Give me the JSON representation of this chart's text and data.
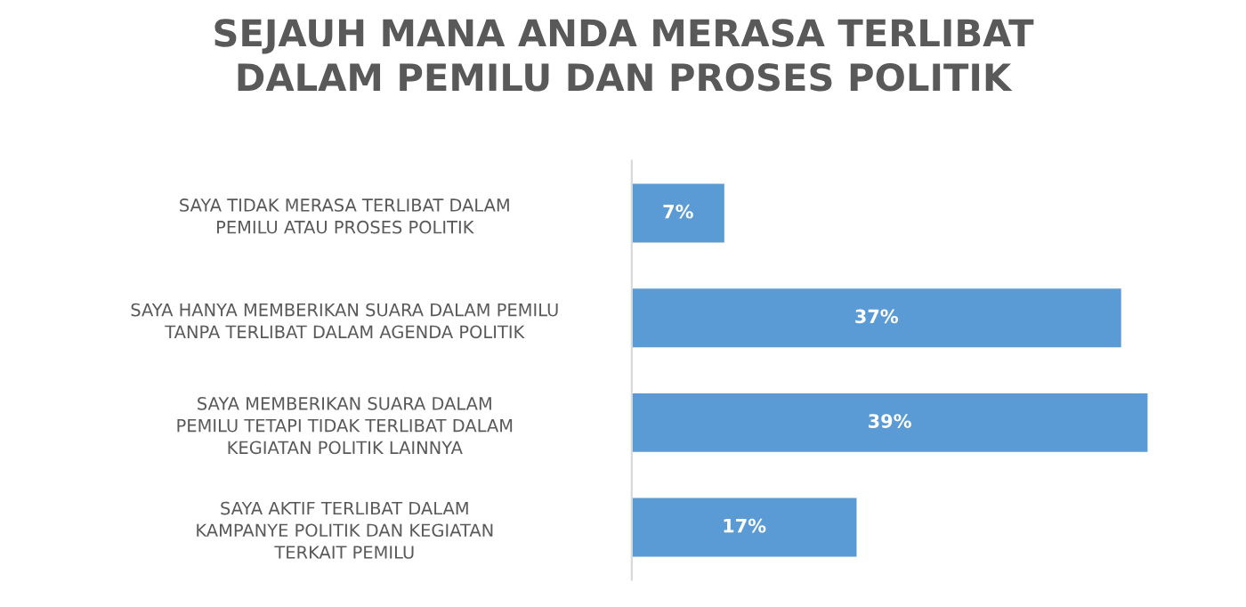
{
  "chart_data": {
    "type": "bar",
    "orientation": "horizontal",
    "title": "SEJAUH MANA ANDA MERASA TERLIBAT\nDALAM PEMILU DAN PROSES POLITIK",
    "categories": [
      "SAYA TIDAK MERASA TERLIBAT DALAM\nPEMILU ATAU PROSES POLITIK",
      "SAYA HANYA MEMBERIKAN SUARA DALAM PEMILU\nTANPA TERLIBAT DALAM AGENDA POLITIK",
      "SAYA MEMBERIKAN SUARA DALAM\nPEMILU TETAPI TIDAK TERLIBAT DALAM\nKEGIATAN POLITIK LAINNYA",
      "SAYA AKTIF TERLIBAT DALAM\nKAMPANYE POLITIK DAN KEGIATAN\nTERKAIT PEMILU"
    ],
    "values": [
      7,
      37,
      39,
      17
    ],
    "value_labels": [
      "7%",
      "37%",
      "39%",
      "17%"
    ],
    "color": "#5b9bd5",
    "tick_labels": "y",
    "grid": false,
    "legend": false
  }
}
